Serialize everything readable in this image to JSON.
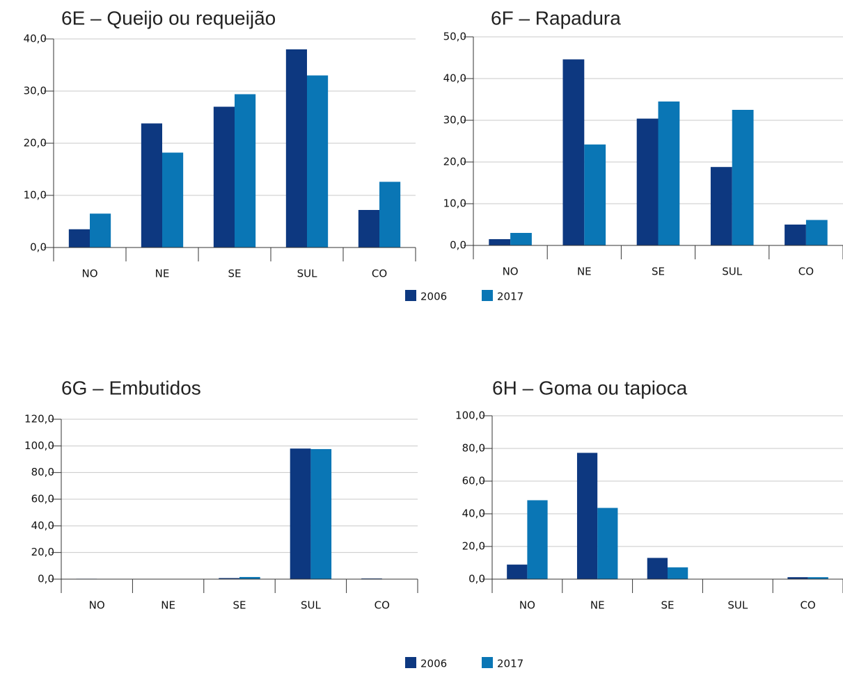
{
  "chart_data": [
    {
      "type": "bar",
      "title": "6E – Queijo ou requeijão",
      "categories": [
        "NO",
        "NE",
        "SE",
        "SUL",
        "CO"
      ],
      "series": [
        {
          "name": "2006",
          "color": "#0d3880",
          "values": [
            3.5,
            23.8,
            27.0,
            38.0,
            7.2
          ]
        },
        {
          "name": "2017",
          "color": "#0a76b5",
          "values": [
            6.5,
            18.2,
            29.4,
            33.0,
            12.6
          ]
        }
      ],
      "ylim": [
        0,
        40
      ],
      "yticks": [
        {
          "value": 0,
          "label": "0,0"
        },
        {
          "value": 10,
          "label": "10,0"
        },
        {
          "value": 20,
          "label": "20,0"
        },
        {
          "value": 30,
          "label": "30,0"
        },
        {
          "value": 40,
          "label": "40,0"
        }
      ],
      "grid": true
    },
    {
      "type": "bar",
      "title": "6F – Rapadura",
      "categories": [
        "NO",
        "NE",
        "SE",
        "SUL",
        "CO"
      ],
      "series": [
        {
          "name": "2006",
          "color": "#0d3880",
          "values": [
            1.5,
            44.6,
            30.4,
            18.8,
            5.0
          ]
        },
        {
          "name": "2017",
          "color": "#0a76b5",
          "values": [
            3.0,
            24.2,
            34.5,
            32.5,
            6.1
          ]
        }
      ],
      "ylim": [
        0,
        50
      ],
      "yticks": [
        {
          "value": 0,
          "label": "0,0"
        },
        {
          "value": 10,
          "label": "10,0"
        },
        {
          "value": 20,
          "label": "20,0"
        },
        {
          "value": 30,
          "label": "30,0"
        },
        {
          "value": 40,
          "label": "40,0"
        },
        {
          "value": 50,
          "label": "50,0"
        }
      ],
      "grid": true
    },
    {
      "type": "bar",
      "title": "6G – Embutidos",
      "categories": [
        "NO",
        "NE",
        "SE",
        "SUL",
        "CO"
      ],
      "series": [
        {
          "name": "2006",
          "color": "#0d3880",
          "values": [
            0.3,
            0,
            0.8,
            98.0,
            0.5
          ]
        },
        {
          "name": "2017",
          "color": "#0a76b5",
          "values": [
            0.1,
            0,
            1.6,
            97.6,
            0.2
          ]
        }
      ],
      "ylim": [
        0,
        120
      ],
      "yticks": [
        {
          "value": 0,
          "label": "0,0"
        },
        {
          "value": 20,
          "label": "20,0"
        },
        {
          "value": 40,
          "label": "40,0"
        },
        {
          "value": 60,
          "label": "60,0"
        },
        {
          "value": 80,
          "label": "80,0"
        },
        {
          "value": 100,
          "label": "100,0"
        },
        {
          "value": 120,
          "label": "120,0"
        }
      ],
      "grid": true
    },
    {
      "type": "bar",
      "title": "6H – Goma ou tapioca",
      "categories": [
        "NO",
        "NE",
        "SE",
        "SUL",
        "CO"
      ],
      "series": [
        {
          "name": "2006",
          "color": "#0d3880",
          "values": [
            8.9,
            77.3,
            13.0,
            0,
            1.2
          ]
        },
        {
          "name": "2017",
          "color": "#0a76b5",
          "values": [
            48.3,
            43.6,
            7.2,
            0,
            1.2
          ]
        }
      ],
      "ylim": [
        0,
        100
      ],
      "yticks": [
        {
          "value": 0,
          "label": "0,0"
        },
        {
          "value": 20,
          "label": "20,0"
        },
        {
          "value": 40,
          "label": "40,0"
        },
        {
          "value": 60,
          "label": "60,0"
        },
        {
          "value": 80,
          "label": "80,0"
        },
        {
          "value": 100,
          "label": "100,0"
        }
      ],
      "grid": true
    }
  ]
}
